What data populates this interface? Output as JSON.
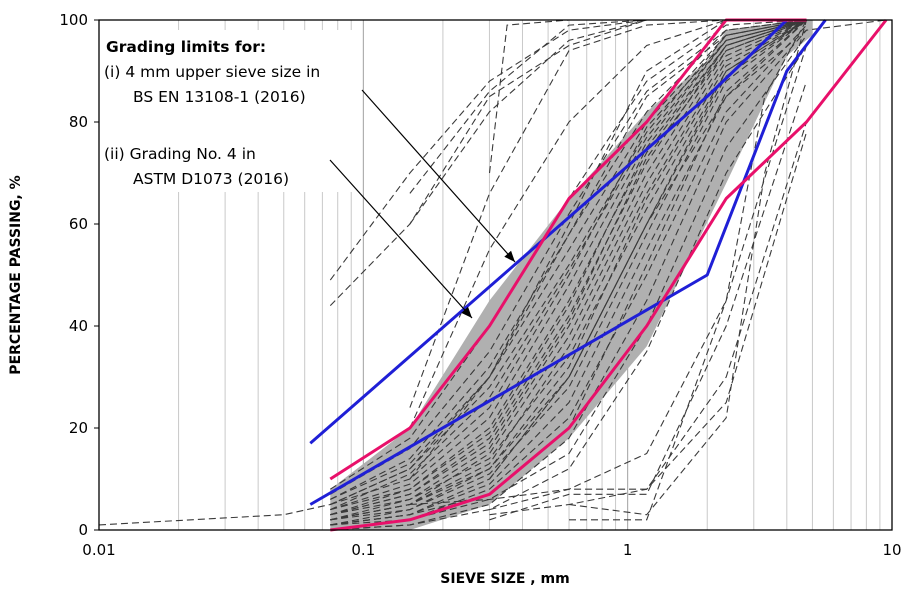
{
  "chart_data": {
    "type": "line",
    "title": "",
    "xlabel": "SIEVE SIZE , mm",
    "ylabel": "PERCENTAGE PASSING, %",
    "xscale": "log",
    "xlim": [
      0.01,
      10
    ],
    "ylim": [
      0,
      100
    ],
    "x_tick_labels": [
      "0.01",
      "0.1",
      "1",
      "10"
    ],
    "x_ticks": [
      0.01,
      0.1,
      1,
      10
    ],
    "y_tick_labels": [
      "0",
      "20",
      "40",
      "60",
      "80",
      "100"
    ],
    "y_ticks": [
      0,
      20,
      40,
      60,
      80,
      100
    ],
    "grid": "vertical log minor lines",
    "annotations": {
      "heading": "Grading limits for:",
      "line_i_a": "(i) 4 mm upper sieve size in",
      "line_i_b": "BS EN 13108-1 (2016)",
      "line_ii_a": "(ii) Grading No. 4 in",
      "line_ii_b": "ASTM D1073 (2016)"
    },
    "colors": {
      "envelope": "#b0b0b0",
      "samples": "#3a3a3a",
      "bs_en_limits": "#1f1fd6",
      "astm_limits": "#e8106a"
    },
    "envelope": {
      "upper": [
        [
          0.075,
          8
        ],
        [
          0.15,
          20
        ],
        [
          0.3,
          45
        ],
        [
          0.6,
          65
        ],
        [
          1.18,
          82
        ],
        [
          2,
          92
        ],
        [
          2.36,
          98
        ],
        [
          4.75,
          100
        ],
        [
          5,
          100
        ]
      ],
      "lower": [
        [
          5,
          97
        ],
        [
          4,
          93
        ],
        [
          2.36,
          68
        ],
        [
          1.18,
          36
        ],
        [
          0.6,
          18
        ],
        [
          0.3,
          5
        ],
        [
          0.15,
          0
        ],
        [
          0.075,
          0
        ]
      ]
    },
    "series": [
      {
        "name": "BS EN 13108-1 upper",
        "x": [
          0.063,
          2,
          4
        ],
        "y": [
          17,
          85,
          100
        ]
      },
      {
        "name": "BS EN 13108-1 lower",
        "x": [
          0.063,
          2,
          4,
          5.6
        ],
        "y": [
          5,
          50,
          90,
          100
        ]
      },
      {
        "name": "ASTM D1073 upper",
        "x": [
          0.075,
          0.15,
          0.3,
          0.6,
          1.18,
          2.36,
          4.75
        ],
        "y": [
          10,
          20,
          40,
          65,
          80,
          100,
          100
        ]
      },
      {
        "name": "ASTM D1073 lower",
        "x": [
          0.075,
          0.15,
          0.3,
          0.6,
          1.18,
          2.36,
          4.75,
          9.5
        ],
        "y": [
          0,
          2,
          7,
          20,
          40,
          65,
          80,
          100
        ]
      }
    ],
    "sample_curves": [
      {
        "x": [
          0.075,
          0.15,
          0.3,
          0.6,
          1.18,
          2.36,
          4.75
        ],
        "y": [
          1,
          3,
          10,
          30,
          60,
          90,
          100
        ]
      },
      {
        "x": [
          0.075,
          0.15,
          0.3,
          0.6,
          1.18,
          2.36,
          4.75
        ],
        "y": [
          2,
          5,
          15,
          38,
          68,
          93,
          100
        ]
      },
      {
        "x": [
          0.075,
          0.15,
          0.3,
          0.6,
          1.18,
          2.36,
          4.75
        ],
        "y": [
          3,
          7,
          18,
          42,
          72,
          95,
          100
        ]
      },
      {
        "x": [
          0.075,
          0.15,
          0.3,
          0.6,
          1.18,
          2.36,
          4.75
        ],
        "y": [
          4,
          9,
          22,
          48,
          76,
          96,
          100
        ]
      },
      {
        "x": [
          0.075,
          0.15,
          0.3,
          0.6,
          1.18,
          2.36,
          4.75
        ],
        "y": [
          5,
          12,
          28,
          52,
          78,
          97,
          100
        ]
      },
      {
        "x": [
          0.075,
          0.15,
          0.3,
          0.6,
          1.18,
          2.36,
          4.75
        ],
        "y": [
          6,
          14,
          32,
          58,
          82,
          98,
          100
        ]
      },
      {
        "x": [
          0.075,
          0.15,
          0.3,
          0.6,
          1.18,
          2.36,
          4.75
        ],
        "y": [
          0,
          2,
          8,
          22,
          50,
          82,
          99
        ]
      },
      {
        "x": [
          0.075,
          0.15,
          0.3,
          0.6,
          1.18,
          2.36,
          4.75
        ],
        "y": [
          1,
          3,
          9,
          25,
          55,
          85,
          100
        ]
      },
      {
        "x": [
          0.075,
          0.15,
          0.3,
          0.6,
          1.18,
          2.36,
          4.75
        ],
        "y": [
          2,
          4,
          11,
          28,
          58,
          88,
          100
        ]
      },
      {
        "x": [
          0.075,
          0.15,
          0.3,
          0.6,
          1.18,
          2.36,
          4.75
        ],
        "y": [
          3,
          6,
          14,
          34,
          63,
          90,
          100
        ]
      },
      {
        "x": [
          0.075,
          0.15,
          0.3,
          0.6,
          1.18,
          2.36,
          4.75
        ],
        "y": [
          4,
          8,
          20,
          45,
          74,
          95,
          100
        ]
      },
      {
        "x": [
          0.075,
          0.15,
          0.3,
          0.6,
          1.18,
          2.36,
          4.75
        ],
        "y": [
          5,
          10,
          24,
          50,
          79,
          96,
          100
        ]
      },
      {
        "x": [
          0.075,
          0.15,
          0.3,
          0.6,
          1.18,
          2.36,
          4.75
        ],
        "y": [
          1,
          4,
          12,
          32,
          65,
          91,
          100
        ]
      },
      {
        "x": [
          0.075,
          0.15,
          0.3,
          0.6,
          1.18,
          2.36,
          4.75
        ],
        "y": [
          2,
          6,
          16,
          40,
          70,
          94,
          100
        ]
      },
      {
        "x": [
          0.075,
          0.15,
          0.3,
          0.6,
          1.18,
          2.36,
          4.75
        ],
        "y": [
          0,
          1,
          5,
          18,
          45,
          80,
          98
        ]
      },
      {
        "x": [
          0.075,
          0.15,
          0.3,
          0.6,
          1.18,
          2.36,
          4.75
        ],
        "y": [
          3,
          8,
          19,
          44,
          75,
          95,
          100
        ]
      },
      {
        "x": [
          0.075,
          0.15,
          0.3,
          0.6,
          1.18,
          2.36,
          4.75
        ],
        "y": [
          6,
          13,
          30,
          55,
          80,
          97,
          100
        ]
      },
      {
        "x": [
          0.075,
          0.15,
          0.3,
          0.6,
          1.18,
          2.36,
          4.75
        ],
        "y": [
          2,
          5,
          13,
          36,
          66,
          92,
          100
        ]
      },
      {
        "x": [
          0.075,
          0.15,
          0.3,
          0.6,
          1.18,
          2.36,
          4.75
        ],
        "y": [
          1,
          3,
          7,
          20,
          52,
          86,
          100
        ]
      },
      {
        "x": [
          0.075,
          0.15,
          0.3,
          0.6,
          1.18,
          2.36,
          4.75
        ],
        "y": [
          4,
          11,
          26,
          51,
          77,
          96,
          100
        ]
      },
      {
        "x": [
          0.075,
          0.15,
          0.3,
          0.6,
          1.18,
          2.36,
          4.75
        ],
        "y": [
          7,
          16,
          35,
          62,
          86,
          98,
          100
        ]
      },
      {
        "x": [
          0.075,
          0.15,
          0.3,
          0.6,
          1.18,
          2.36,
          4.75
        ],
        "y": [
          2,
          5,
          12,
          30,
          60,
          89,
          100
        ]
      },
      {
        "x": [
          0.075,
          0.15,
          0.3,
          0.6,
          1.18,
          2.36,
          4.75
        ],
        "y": [
          3,
          7,
          17,
          41,
          73,
          94,
          100
        ]
      },
      {
        "x": [
          0.075,
          0.15,
          0.3,
          0.6,
          1.18,
          2.36,
          4.75
        ],
        "y": [
          1,
          2,
          6,
          15,
          40,
          75,
          97
        ]
      },
      {
        "x": [
          0.01,
          0.05,
          0.075,
          0.15,
          0.3,
          0.6,
          1.18,
          2.36,
          4.75
        ],
        "y": [
          1,
          3,
          5,
          12,
          30,
          58,
          85,
          97,
          100
        ]
      },
      {
        "x": [
          0.075,
          0.15,
          0.3,
          0.6,
          1.18,
          2.36,
          4.75
        ],
        "y": [
          44,
          60,
          85,
          95,
          100,
          100,
          100
        ]
      },
      {
        "x": [
          0.075,
          0.15,
          0.3,
          0.6,
          1.18,
          2.36,
          4.75
        ],
        "y": [
          49,
          70,
          88,
          98,
          100,
          100,
          100
        ]
      },
      {
        "x": [
          0.15,
          0.3,
          0.6,
          1.18,
          2.36,
          4.75
        ],
        "y": [
          60,
          82,
          96,
          100,
          100,
          100
        ]
      },
      {
        "x": [
          0.15,
          0.3,
          0.6,
          1.18,
          2.36,
          4.75
        ],
        "y": [
          66,
          86,
          99,
          100,
          100,
          100
        ]
      },
      {
        "x": [
          0.3,
          0.35,
          0.6,
          1.18,
          2.36,
          4.75
        ],
        "y": [
          70,
          99,
          100,
          100,
          100,
          100
        ]
      },
      {
        "x": [
          0.15,
          0.3,
          0.6,
          1.18,
          2.36,
          4.75
        ],
        "y": [
          20,
          55,
          80,
          95,
          100,
          100
        ]
      },
      {
        "x": [
          0.15,
          0.3,
          0.6,
          1.18,
          2.36,
          4.75
        ],
        "y": [
          24,
          66,
          94,
          99,
          100,
          100
        ]
      },
      {
        "x": [
          0.3,
          0.6,
          1.18,
          2.36,
          4.75
        ],
        "y": [
          3,
          5,
          8,
          25,
          78
        ]
      },
      {
        "x": [
          0.3,
          0.6,
          1.18,
          2.36,
          4.75
        ],
        "y": [
          2,
          7,
          7,
          40,
          88
        ]
      },
      {
        "x": [
          0.6,
          1.18,
          2.36,
          4.75
        ],
        "y": [
          2,
          2,
          45,
          95
        ]
      },
      {
        "x": [
          0.6,
          1.18,
          2.36,
          3.3,
          4.75
        ],
        "y": [
          5,
          3,
          22,
          70,
          100
        ]
      },
      {
        "x": [
          0.15,
          0.3,
          0.6,
          1.18,
          2.36,
          4.75
        ],
        "y": [
          5,
          6,
          8,
          8,
          30,
          80
        ]
      },
      {
        "x": [
          0.3,
          0.6,
          1.18,
          2.36,
          3.3,
          4.75
        ],
        "y": [
          4,
          8,
          15,
          45,
          85,
          100
        ]
      },
      {
        "x": [
          0.15,
          0.3,
          0.6,
          1.18,
          2.36,
          4.75
        ],
        "y": [
          10,
          30,
          60,
          90,
          100,
          100
        ]
      },
      {
        "x": [
          0.3,
          0.6,
          1.18,
          2.36,
          4.75,
          9.5
        ],
        "y": [
          10,
          30,
          60,
          85,
          98,
          100
        ]
      },
      {
        "x": [
          0.075,
          0.15,
          0.3,
          0.6,
          1.18,
          2.36,
          4.75
        ],
        "y": [
          0,
          1,
          4,
          12,
          35,
          70,
          95
        ]
      },
      {
        "x": [
          0.075,
          0.15,
          0.3,
          0.6,
          1.18,
          2.36,
          4.75
        ],
        "y": [
          8,
          18,
          40,
          65,
          88,
          99,
          100
        ]
      }
    ]
  }
}
